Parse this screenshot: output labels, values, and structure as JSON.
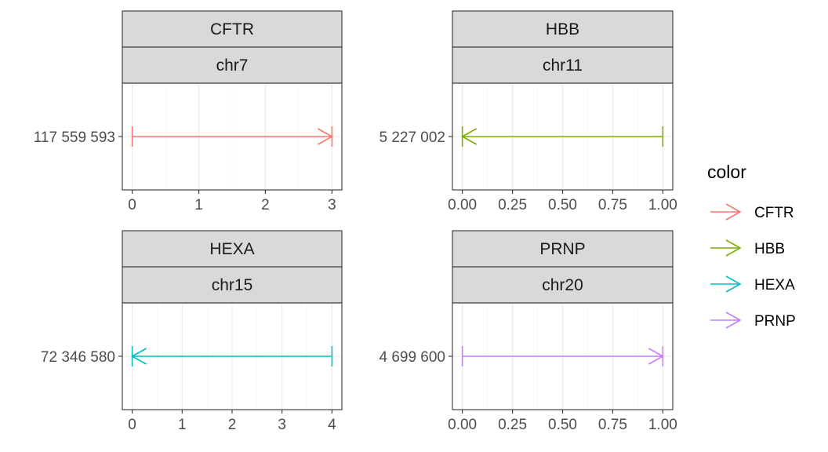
{
  "chart_data": {
    "type": "arrow-range-facets",
    "legend": {
      "title": "color",
      "placement": "right",
      "entries": [
        {
          "label": "CFTR",
          "color": "#F8766D"
        },
        {
          "label": "HBB",
          "color": "#7CAE00"
        },
        {
          "label": "HEXA",
          "color": "#00BFC4"
        },
        {
          "label": "PRNP",
          "color": "#C77CFF"
        }
      ]
    },
    "panels": [
      {
        "gene": "CFTR",
        "chrom": "chr7",
        "color": "#F8766D",
        "y_label": "117 559 593",
        "x_range": [
          0,
          3
        ],
        "x_ticks": [
          0,
          1,
          2,
          3
        ],
        "x_tick_labels": [
          "0",
          "1",
          "2",
          "3"
        ],
        "segment": {
          "start": 0,
          "end": 3,
          "arrow_at": "end"
        }
      },
      {
        "gene": "HBB",
        "chrom": "chr11",
        "color": "#7CAE00",
        "y_label": "5 227 002",
        "x_range": [
          0,
          1
        ],
        "x_ticks": [
          0,
          0.25,
          0.5,
          0.75,
          1
        ],
        "x_tick_labels": [
          "0.00",
          "0.25",
          "0.50",
          "0.75",
          "1.00"
        ],
        "segment": {
          "start": 0,
          "end": 1,
          "arrow_at": "start"
        }
      },
      {
        "gene": "HEXA",
        "chrom": "chr15",
        "color": "#00BFC4",
        "y_label": "72 346 580",
        "x_range": [
          0,
          4
        ],
        "x_ticks": [
          0,
          1,
          2,
          3,
          4
        ],
        "x_tick_labels": [
          "0",
          "1",
          "2",
          "3",
          "4"
        ],
        "segment": {
          "start": 0,
          "end": 4,
          "arrow_at": "start"
        }
      },
      {
        "gene": "PRNP",
        "chrom": "chr20",
        "color": "#C77CFF",
        "y_label": "4 699 600",
        "x_range": [
          0,
          1
        ],
        "x_ticks": [
          0,
          0.25,
          0.5,
          0.75,
          1
        ],
        "x_tick_labels": [
          "0.00",
          "0.25",
          "0.50",
          "0.75",
          "1.00"
        ],
        "segment": {
          "start": 0,
          "end": 1,
          "arrow_at": "end"
        }
      }
    ]
  }
}
